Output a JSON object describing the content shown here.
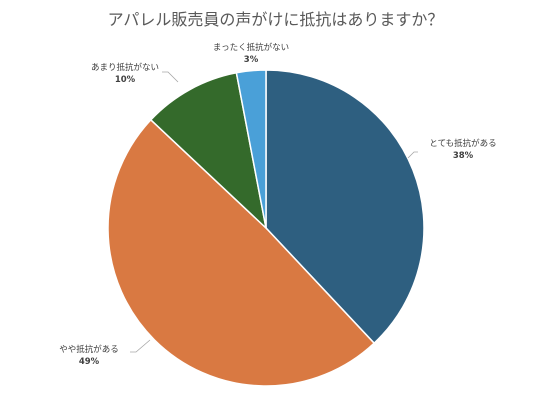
{
  "chart_data": {
    "type": "pie",
    "title": "アパレル販売員の声がけに抵抗はありますか？",
    "start": "12 o'clock",
    "direction": "clockwise",
    "slices": [
      {
        "label": "とても抵抗がある",
        "value": 38,
        "value_label": "38%",
        "color": "#2e5f80"
      },
      {
        "label": "やや抵抗がある",
        "value": 49,
        "value_label": "49%",
        "color": "#d97942"
      },
      {
        "label": "あまり抵抗がない",
        "value": 10,
        "value_label": "10%",
        "color": "#346a2b"
      },
      {
        "label": "まったく抵抗がない",
        "value": 3,
        "value_label": "3%",
        "color": "#4aa0d8"
      }
    ]
  }
}
